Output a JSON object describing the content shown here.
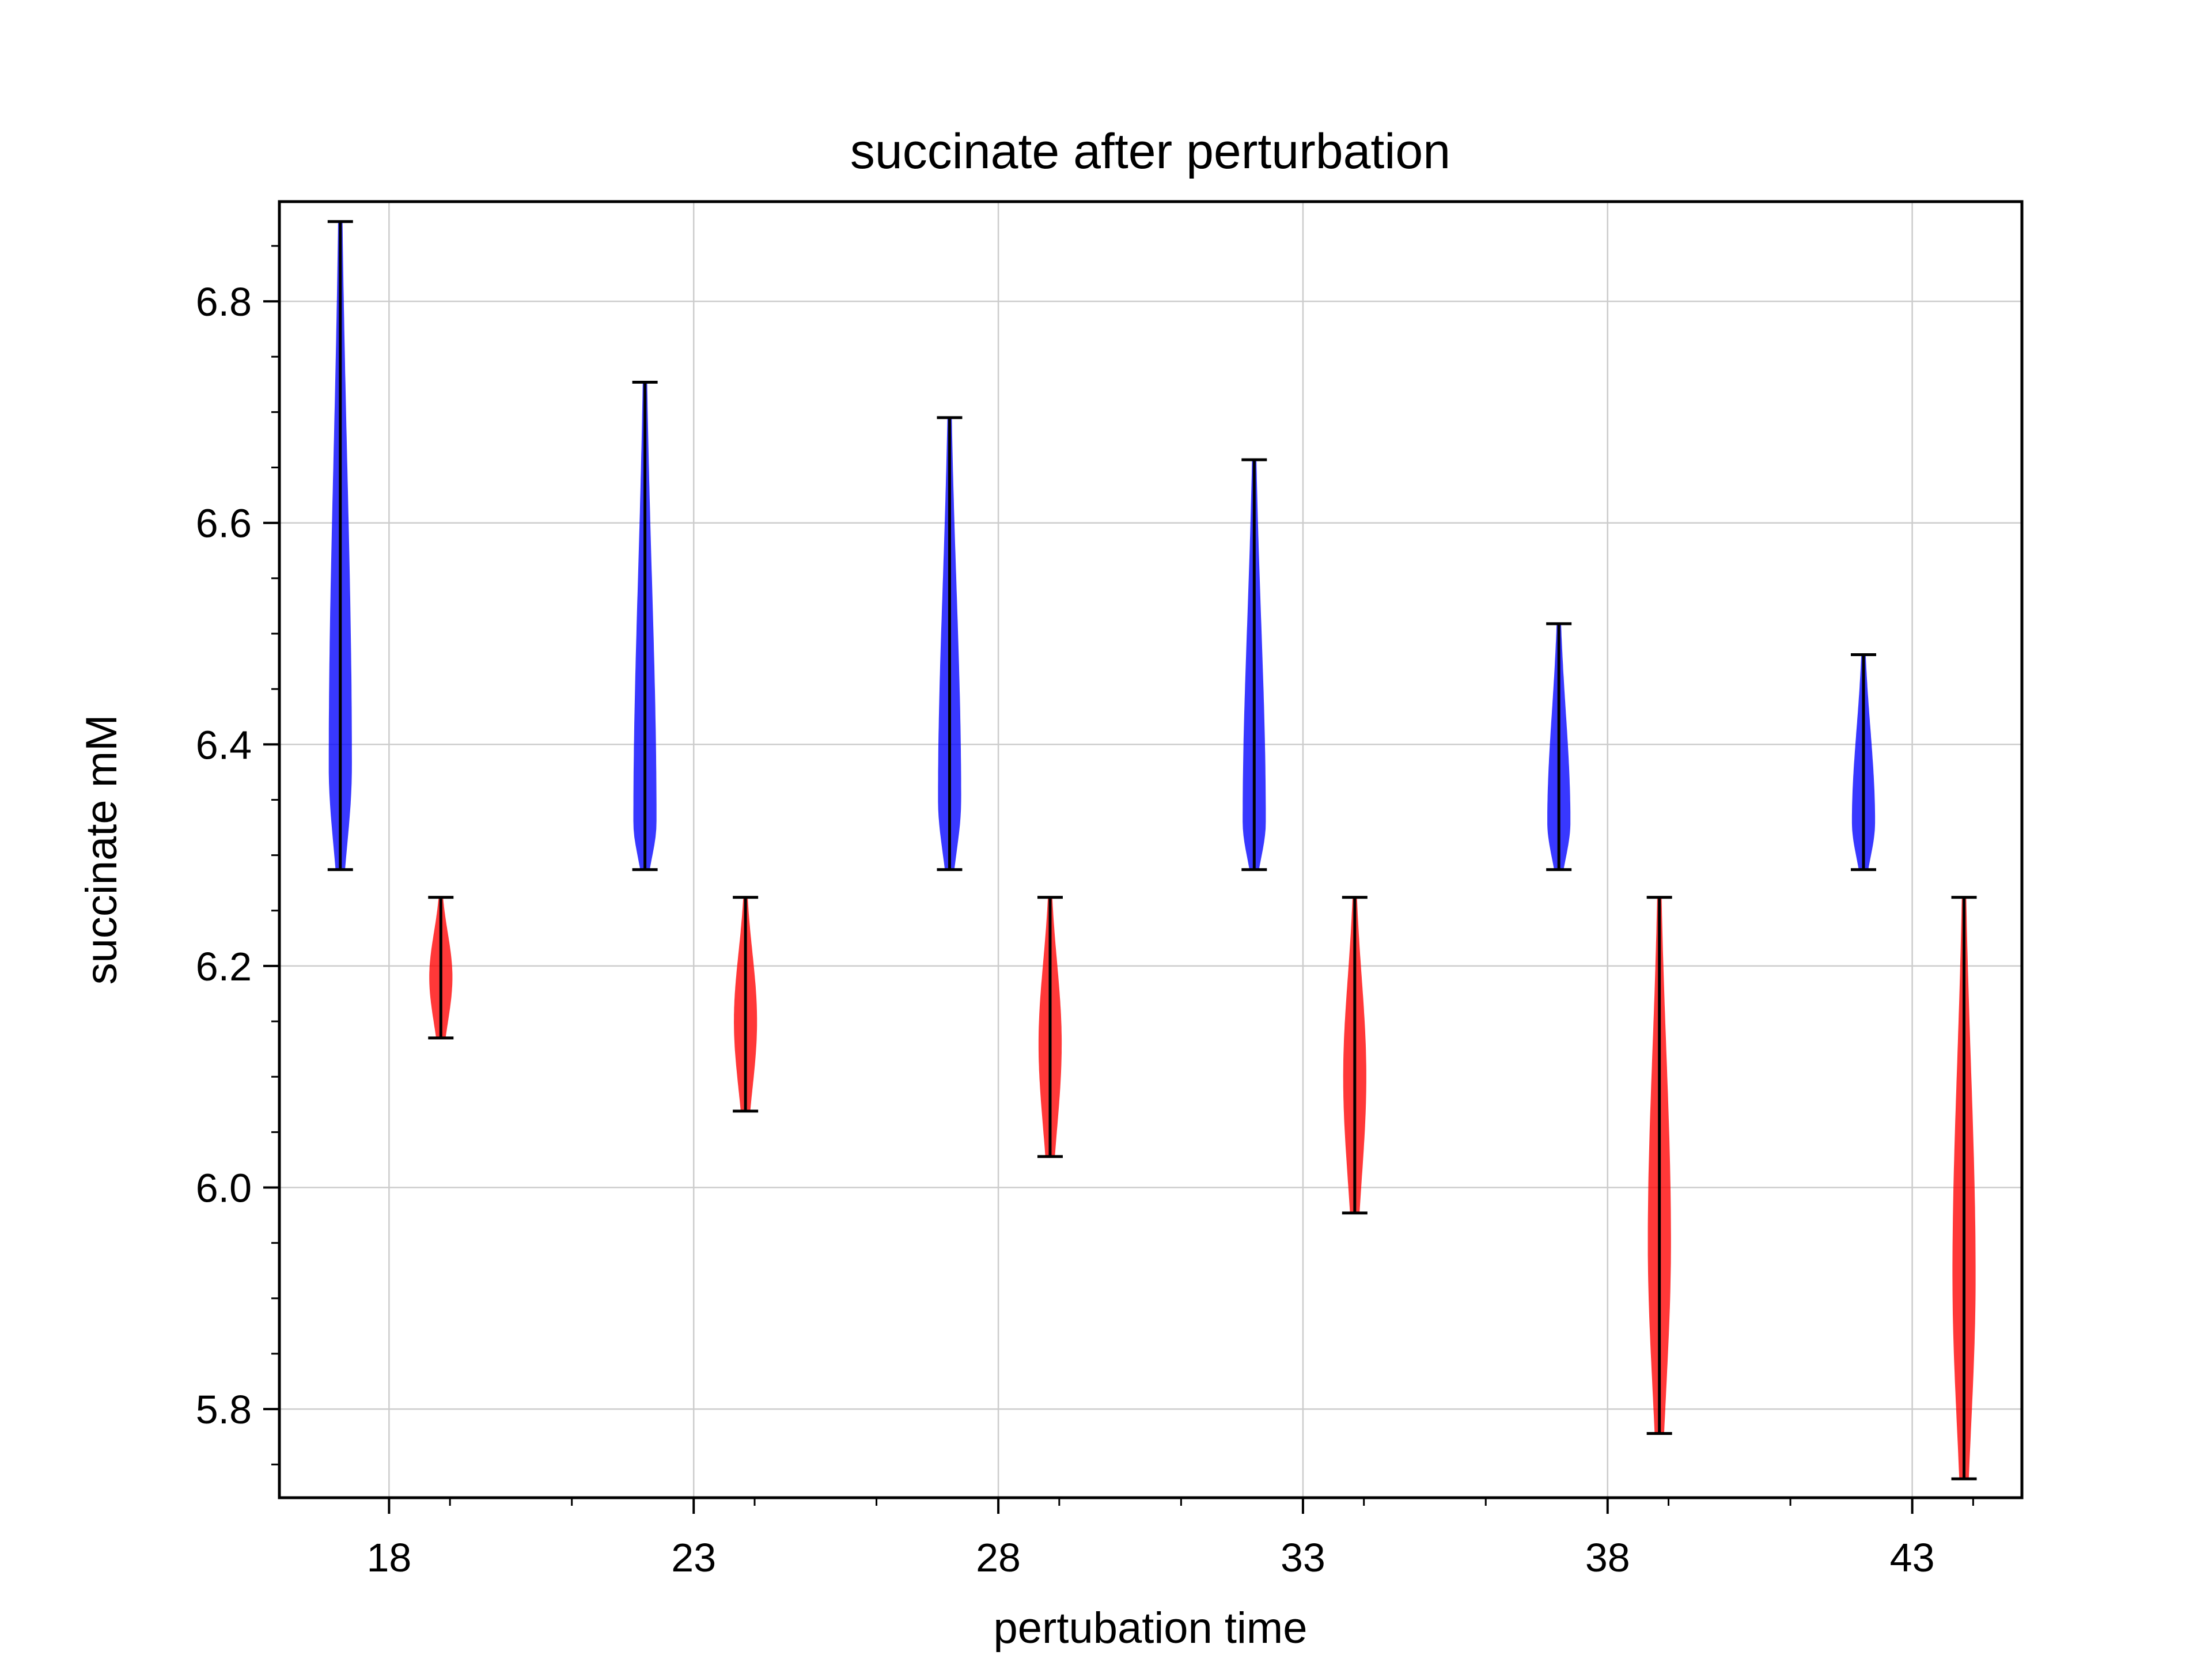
{
  "chart_data": {
    "type": "violin",
    "title": "succinate after perturbation",
    "xlabel": "pertubation time",
    "ylabel": "succinate mM",
    "xticks": [
      "18",
      "23",
      "28",
      "33",
      "38",
      "43"
    ],
    "xtick_values": [
      18,
      23,
      28,
      33,
      38,
      43
    ],
    "yticks": [
      "5.8",
      "6.0",
      "6.2",
      "6.4",
      "6.6",
      "6.8"
    ],
    "ytick_values": [
      5.8,
      6.0,
      6.2,
      6.4,
      6.6,
      6.8
    ],
    "xlim": [
      16.2,
      44.8
    ],
    "ylim": [
      5.72,
      6.89
    ],
    "grid": true,
    "colors": {
      "blue": "#0000ff",
      "red": "#ff0000",
      "line": "#000000",
      "grid": "#cccccc"
    },
    "series": [
      {
        "color": "blue",
        "violins": [
          {
            "x": 17.2,
            "min": 6.287,
            "max": 6.872,
            "peak": 6.38,
            "width": 0.4
          },
          {
            "x": 22.2,
            "min": 6.287,
            "max": 6.727,
            "peak": 6.33,
            "width": 0.4
          },
          {
            "x": 27.2,
            "min": 6.287,
            "max": 6.695,
            "peak": 6.35,
            "width": 0.4
          },
          {
            "x": 32.2,
            "min": 6.287,
            "max": 6.657,
            "peak": 6.33,
            "width": 0.4
          },
          {
            "x": 37.2,
            "min": 6.287,
            "max": 6.509,
            "peak": 6.33,
            "width": 0.4
          },
          {
            "x": 42.2,
            "min": 6.287,
            "max": 6.481,
            "peak": 6.33,
            "width": 0.4
          }
        ]
      },
      {
        "color": "red",
        "violins": [
          {
            "x": 18.85,
            "min": 6.135,
            "max": 6.262,
            "peak": 6.19,
            "width": 0.4
          },
          {
            "x": 23.85,
            "min": 6.069,
            "max": 6.262,
            "peak": 6.15,
            "width": 0.4
          },
          {
            "x": 28.85,
            "min": 6.028,
            "max": 6.262,
            "peak": 6.13,
            "width": 0.4
          },
          {
            "x": 33.85,
            "min": 5.977,
            "max": 6.262,
            "peak": 6.1,
            "width": 0.4
          },
          {
            "x": 38.85,
            "min": 5.778,
            "max": 6.262,
            "peak": 5.95,
            "width": 0.4
          },
          {
            "x": 43.85,
            "min": 5.737,
            "max": 6.262,
            "peak": 5.92,
            "width": 0.4
          }
        ]
      }
    ]
  }
}
